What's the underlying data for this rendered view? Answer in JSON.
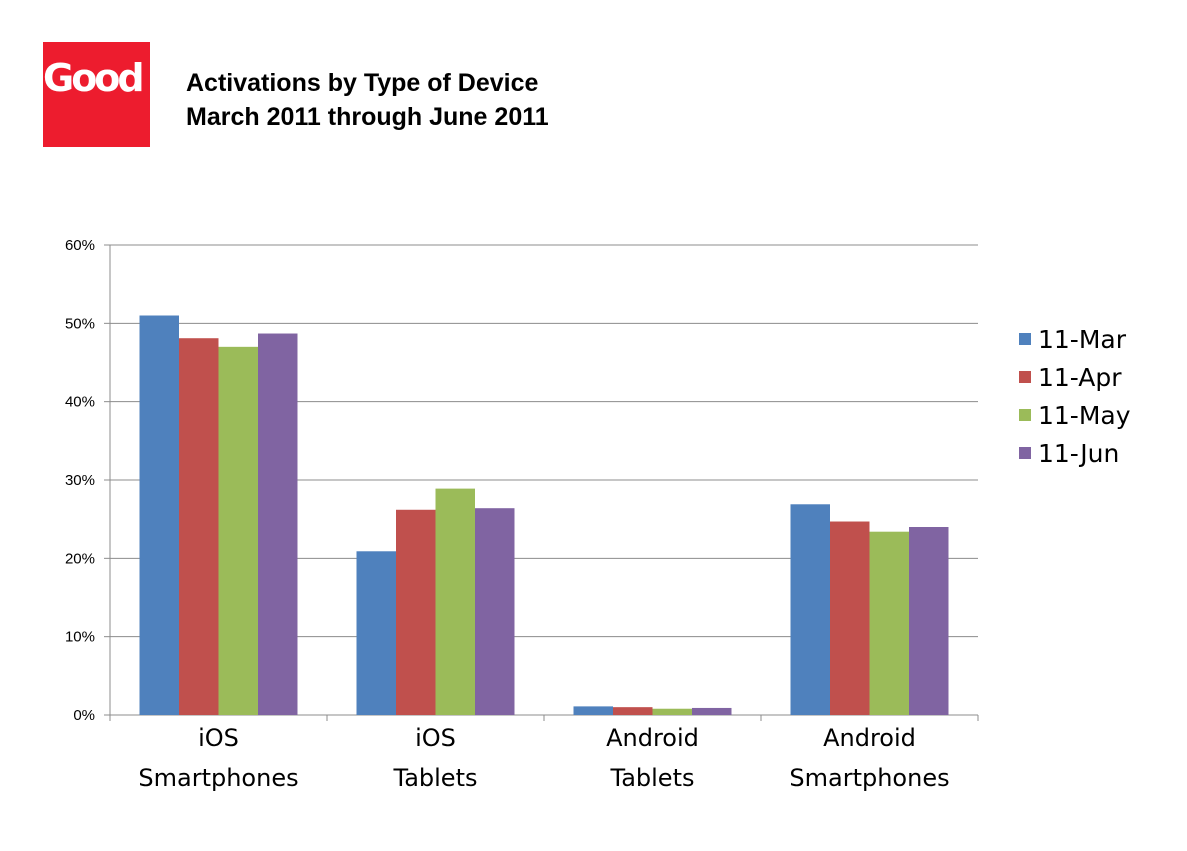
{
  "logo": {
    "text": "Good",
    "color": "#ed1c2e"
  },
  "header": {
    "title_line1": "Activations by Type of Device",
    "title_line2": "March 2011 through June 2011"
  },
  "chart_data": {
    "type": "bar",
    "categories": [
      [
        "iOS",
        "Smartphones"
      ],
      [
        "iOS",
        "Tablets"
      ],
      [
        "Android",
        "Tablets"
      ],
      [
        "Android",
        "Smartphones"
      ]
    ],
    "series": [
      {
        "name": "11-Mar",
        "color": "#4f81bd",
        "values": [
          51,
          20.9,
          1.1,
          26.9
        ]
      },
      {
        "name": "11-Apr",
        "color": "#c0504d",
        "values": [
          48.1,
          26.2,
          1.0,
          24.7
        ]
      },
      {
        "name": "11-May",
        "color": "#9bbb59",
        "values": [
          47.0,
          28.9,
          0.8,
          23.4
        ]
      },
      {
        "name": "11-Jun",
        "color": "#8064a2",
        "values": [
          48.7,
          26.4,
          0.9,
          24.0
        ]
      }
    ],
    "y_ticks": [
      "0%",
      "10%",
      "20%",
      "30%",
      "40%",
      "50%",
      "60%"
    ],
    "ylim": [
      0,
      60
    ],
    "grid": true,
    "legend": "right"
  }
}
